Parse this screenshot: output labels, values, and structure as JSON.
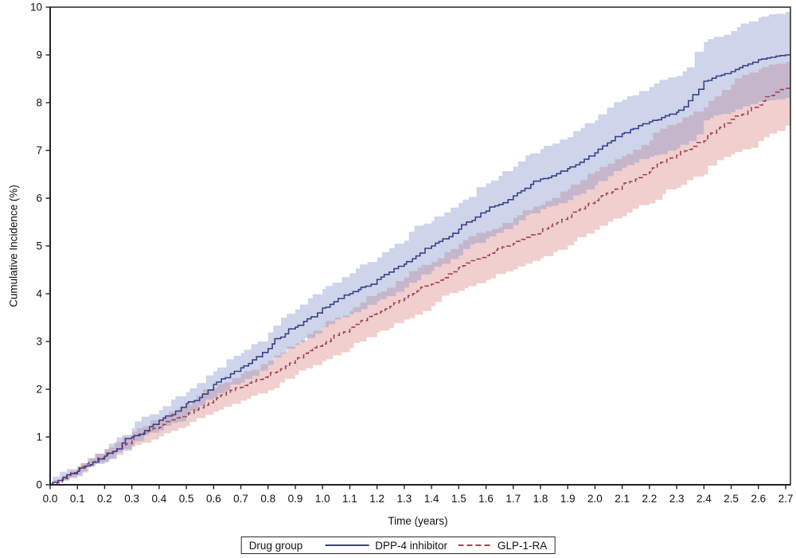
{
  "figure": {
    "background": "#ffffff",
    "axis_color": "#222222",
    "text_color": "#111111"
  },
  "axes": {
    "x_label": "Time (years)",
    "y_label": "Cumulative Incidence (%)"
  },
  "legend": {
    "title": "Drug group",
    "items": [
      {
        "label": "DPP-4 inhibitor",
        "line_style": "solid",
        "color": "#3b4087"
      },
      {
        "label": "GLP-1-RA",
        "line_style": "dashed",
        "color": "#9c4550"
      }
    ]
  },
  "chart_data": {
    "type": "line",
    "subtype": "step-cumulative-incidence-with-ci-bands",
    "title": "",
    "xlabel": "Time (years)",
    "ylabel": "Cumulative Incidence (%)",
    "xlim": [
      0,
      2.7
    ],
    "ylim": [
      0,
      10
    ],
    "grid": false,
    "legend_position": "bottom",
    "x_tick_labels": [
      "0.0",
      "0.1",
      "0.2",
      "0.3",
      "0.4",
      "0.5",
      "0.6",
      "0.7",
      "0.8",
      "0.9",
      "1.0",
      "1.1",
      "1.2",
      "1.3",
      "1.4",
      "1.5",
      "1.6",
      "1.7",
      "1.8",
      "1.9",
      "2.0",
      "2.1",
      "2.2",
      "2.3",
      "2.4",
      "2.5",
      "2.6",
      "2.7"
    ],
    "y_tick_labels": [
      "0",
      "1",
      "2",
      "3",
      "4",
      "5",
      "6",
      "7",
      "8",
      "9",
      "10"
    ],
    "x": [
      0.0,
      0.1,
      0.2,
      0.3,
      0.4,
      0.5,
      0.6,
      0.7,
      0.8,
      0.9,
      1.0,
      1.1,
      1.2,
      1.3,
      1.4,
      1.5,
      1.6,
      1.7,
      1.8,
      1.9,
      2.0,
      2.1,
      2.2,
      2.3,
      2.4,
      2.5,
      2.6,
      2.7
    ],
    "series": [
      {
        "name": "DPP-4 inhibitor",
        "line": "solid",
        "color": "#3b4087",
        "band_color": "rgba(125,142,200,0.38)",
        "values": [
          0.0,
          0.28,
          0.6,
          1.0,
          1.35,
          1.7,
          2.1,
          2.45,
          2.85,
          3.3,
          3.7,
          4.0,
          4.3,
          4.62,
          5.0,
          5.35,
          5.73,
          6.05,
          6.4,
          6.62,
          6.95,
          7.35,
          7.6,
          7.8,
          8.45,
          8.65,
          8.9,
          9.0
        ],
        "ci_upper": [
          0.03,
          0.38,
          0.74,
          1.18,
          1.56,
          1.94,
          2.38,
          2.76,
          3.19,
          3.67,
          4.1,
          4.43,
          4.76,
          5.11,
          5.52,
          5.9,
          6.31,
          6.66,
          7.03,
          7.28,
          7.63,
          8.06,
          8.33,
          8.56,
          9.27,
          9.5,
          9.78,
          9.9
        ],
        "ci_lower": [
          0.0,
          0.18,
          0.46,
          0.82,
          1.14,
          1.46,
          1.82,
          2.14,
          2.51,
          2.93,
          3.3,
          3.57,
          3.84,
          4.13,
          4.48,
          4.8,
          5.15,
          5.44,
          5.77,
          5.96,
          6.27,
          6.64,
          6.87,
          7.04,
          7.63,
          7.8,
          8.02,
          8.1
        ]
      },
      {
        "name": "GLP-1-RA",
        "line": "dashed",
        "color": "#9c4550",
        "band_color": "rgba(219,128,128,0.38)",
        "values": [
          0.0,
          0.3,
          0.62,
          0.95,
          1.2,
          1.45,
          1.78,
          2.04,
          2.29,
          2.63,
          2.95,
          3.25,
          3.6,
          3.9,
          4.2,
          4.55,
          4.8,
          5.05,
          5.3,
          5.6,
          5.95,
          6.25,
          6.55,
          6.9,
          7.2,
          7.65,
          7.95,
          8.3
        ],
        "ci_upper": [
          0.03,
          0.39,
          0.75,
          1.11,
          1.39,
          1.67,
          2.03,
          2.32,
          2.6,
          2.96,
          3.31,
          3.64,
          4.01,
          4.34,
          4.66,
          5.04,
          5.31,
          5.59,
          5.86,
          6.19,
          6.56,
          6.88,
          7.21,
          7.58,
          7.9,
          8.38,
          8.7,
          8.85
        ],
        "ci_lower": [
          0.0,
          0.21,
          0.49,
          0.79,
          1.01,
          1.23,
          1.53,
          1.76,
          1.98,
          2.3,
          2.59,
          2.86,
          3.19,
          3.46,
          3.74,
          4.06,
          4.29,
          4.51,
          4.74,
          5.01,
          5.34,
          5.62,
          5.89,
          6.22,
          6.5,
          6.92,
          7.2,
          7.52
        ]
      }
    ]
  }
}
